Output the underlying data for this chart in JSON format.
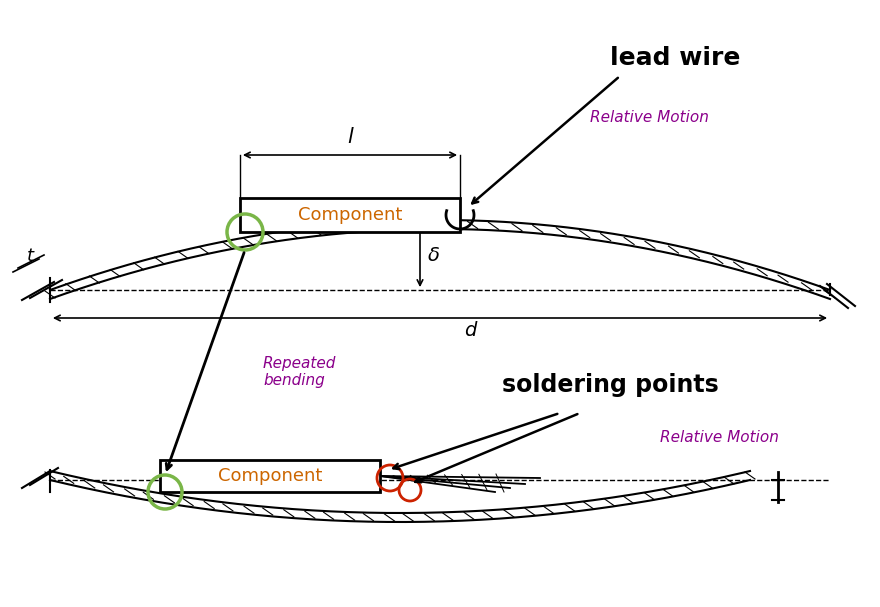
{
  "bg_color": "#ffffff",
  "text_color_black": "#000000",
  "text_color_purple": "#8B008B",
  "text_color_orange": "#CC6600",
  "circle_color_green": "#7ab648",
  "circle_color_red": "#cc2200",
  "lead_wire_label": "lead wire",
  "soldering_points_label": "soldering points",
  "repeated_bending_label": "Repeated\nbending",
  "relative_motion_label": "Relative Motion",
  "component_label": "Component",
  "l_label": "l",
  "d_label": "d",
  "delta_label": "δ",
  "t_label": "t",
  "figsize": [
    8.8,
    6.07
  ],
  "dpi": 100
}
